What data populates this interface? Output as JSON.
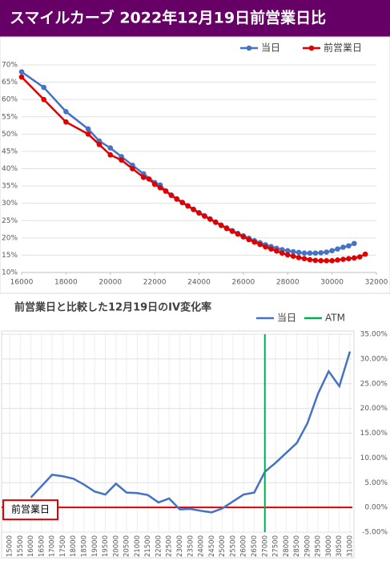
{
  "chart_data": [
    {
      "type": "scatter",
      "title": "スマイルカーブ 2022年12月19日前営業日比",
      "xlim": [
        16000,
        32000
      ],
      "xticks": [
        16000,
        18000,
        20000,
        22000,
        24000,
        26000,
        28000,
        30000,
        32000
      ],
      "ylim": [
        10,
        70
      ],
      "yticks": [
        {
          "value": 10,
          "label": "10%"
        },
        {
          "value": 15,
          "label": "15%"
        },
        {
          "value": 20,
          "label": "20%"
        },
        {
          "value": 25,
          "label": "25%"
        },
        {
          "value": 30,
          "label": "30%"
        },
        {
          "value": 35,
          "label": "35%"
        },
        {
          "value": 40,
          "label": "40%"
        },
        {
          "value": 45,
          "label": "45%"
        },
        {
          "value": 50,
          "label": "50%"
        },
        {
          "value": 55,
          "label": "55%"
        },
        {
          "value": 60,
          "label": "60%"
        },
        {
          "value": 65,
          "label": "65%"
        },
        {
          "value": 70,
          "label": "70%"
        }
      ],
      "legend": "top-right",
      "series": [
        {
          "name": "当日",
          "color": "#4472c4",
          "x": [
            16000,
            17000,
            18000,
            19000,
            19500,
            20000,
            20500,
            21000,
            21500,
            22000,
            22250,
            22500,
            22750,
            23000,
            23250,
            23500,
            23750,
            24000,
            24250,
            24500,
            24750,
            25000,
            25250,
            25500,
            25750,
            26000,
            26250,
            26500,
            26750,
            27000,
            27250,
            27500,
            27750,
            28000,
            28250,
            28500,
            28750,
            29000,
            29250,
            29500,
            29750,
            30000,
            30250,
            30500,
            30750,
            31000
          ],
          "values": [
            68,
            63.5,
            56.5,
            51.5,
            48,
            46,
            43.5,
            41,
            38.5,
            36,
            35.3,
            33.6,
            32.4,
            31.3,
            30.3,
            29.3,
            28.3,
            27.3,
            26.4,
            25.5,
            24.6,
            23.7,
            22.9,
            22.1,
            21.3,
            20.6,
            19.9,
            19.2,
            18.6,
            18.0,
            17.5,
            17.0,
            16.6,
            16.3,
            16.0,
            15.8,
            15.6,
            15.6,
            15.6,
            15.7,
            15.9,
            16.3,
            16.8,
            17.3,
            17.7,
            18.4
          ]
        },
        {
          "name": "前営業日",
          "color": "#e00000",
          "x": [
            16000,
            17000,
            18000,
            19000,
            19500,
            20000,
            20500,
            21000,
            21500,
            21750,
            22000,
            22250,
            22500,
            22750,
            23000,
            23250,
            23500,
            23750,
            24000,
            24250,
            24500,
            24750,
            25000,
            25250,
            25500,
            25750,
            26000,
            26250,
            26500,
            26750,
            27000,
            27250,
            27500,
            27750,
            28000,
            28250,
            28500,
            28750,
            29000,
            29250,
            29500,
            29750,
            30000,
            30250,
            30500,
            30750,
            31000,
            31250,
            31500
          ],
          "values": [
            66.5,
            60,
            53.5,
            50,
            47,
            44,
            42.5,
            40,
            37.5,
            37,
            35.5,
            34.5,
            33.5,
            32.3,
            31.2,
            30.2,
            29.2,
            28.2,
            27.2,
            26.3,
            25.4,
            24.5,
            23.6,
            22.7,
            21.9,
            21.1,
            20.3,
            19.5,
            18.8,
            18.1,
            17.4,
            16.8,
            16.2,
            15.6,
            15.1,
            14.7,
            14.3,
            14.0,
            13.7,
            13.5,
            13.4,
            13.4,
            13.4,
            13.6,
            13.8,
            14.0,
            14.2,
            14.5,
            15.3
          ]
        }
      ]
    },
    {
      "type": "line",
      "title": "前営業日と比較した12月19日のIV変化率",
      "categories": [
        15000,
        15500,
        16000,
        16500,
        17000,
        17500,
        18000,
        18500,
        19000,
        19500,
        20000,
        20500,
        21000,
        21500,
        22000,
        22500,
        23000,
        23500,
        24000,
        24500,
        25000,
        25500,
        26000,
        26500,
        27000,
        27500,
        28000,
        28500,
        29000,
        29500,
        30000,
        30500,
        31000
      ],
      "ylim": [
        -5,
        35
      ],
      "yticks": [
        {
          "value": -5,
          "label": "-5.00%"
        },
        {
          "value": 0,
          "label": "0.00%"
        },
        {
          "value": 5,
          "label": "5.00%"
        },
        {
          "value": 10,
          "label": "10.00%"
        },
        {
          "value": 15,
          "label": "15.00%"
        },
        {
          "value": 20,
          "label": "20.00%"
        },
        {
          "value": 25,
          "label": "25.00%"
        },
        {
          "value": 30,
          "label": "30.00%"
        },
        {
          "value": 35,
          "label": "35.00%"
        }
      ],
      "legend": "top-right",
      "series": [
        {
          "name": "当日",
          "color": "#4472c4",
          "values": [
            null,
            null,
            2.0,
            4.3,
            6.6,
            6.3,
            5.8,
            4.6,
            3.2,
            2.6,
            4.8,
            3.0,
            2.9,
            2.5,
            1.0,
            1.8,
            -0.4,
            -0.3,
            -0.7,
            -1.0,
            -0.2,
            1.2,
            2.6,
            3.0,
            7.2,
            9.0,
            11.0,
            13.0,
            17.0,
            23.0,
            27.5,
            24.5,
            31.5
          ]
        },
        {
          "name": "ATM",
          "color": "#00b050",
          "x": 27000
        }
      ],
      "annotation": {
        "text": "前営業日",
        "value": 0,
        "color": "#e00000"
      }
    }
  ]
}
